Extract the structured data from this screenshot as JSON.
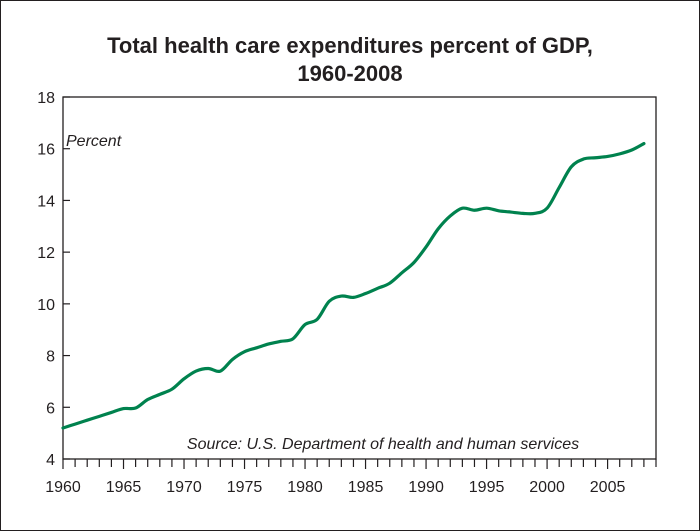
{
  "chart_data": {
    "type": "line",
    "title": "Total health care expenditures percent of GDP,",
    "subtitle": "1960-2008",
    "ylabel": "Percent",
    "xlabel": "",
    "source_note": "Source: U.S. Department of health and human services",
    "xlim": [
      1960,
      2009
    ],
    "ylim": [
      4,
      18
    ],
    "x_ticks": [
      1960,
      1965,
      1970,
      1975,
      1980,
      1985,
      1990,
      1995,
      2000,
      2005
    ],
    "y_ticks": [
      4,
      6,
      8,
      10,
      12,
      14,
      16,
      18
    ],
    "grid": false,
    "series": [
      {
        "color": "#00824e",
        "x": [
          1960,
          1961,
          1962,
          1963,
          1964,
          1965,
          1966,
          1967,
          1968,
          1969,
          1970,
          1971,
          1972,
          1973,
          1974,
          1975,
          1976,
          1977,
          1978,
          1979,
          1980,
          1981,
          1982,
          1983,
          1984,
          1985,
          1986,
          1987,
          1988,
          1989,
          1990,
          1991,
          1992,
          1993,
          1994,
          1995,
          1996,
          1997,
          1998,
          1999,
          2000,
          2001,
          2002,
          2003,
          2004,
          2005,
          2006,
          2007,
          2008
        ],
        "y": [
          5.2,
          5.35,
          5.5,
          5.65,
          5.8,
          5.95,
          5.97,
          6.3,
          6.5,
          6.7,
          7.1,
          7.4,
          7.5,
          7.4,
          7.85,
          8.15,
          8.3,
          8.45,
          8.55,
          8.65,
          9.2,
          9.4,
          10.1,
          10.3,
          10.25,
          10.4,
          10.6,
          10.8,
          11.2,
          11.6,
          12.2,
          12.9,
          13.4,
          13.7,
          13.62,
          13.7,
          13.6,
          13.55,
          13.5,
          13.5,
          13.7,
          14.5,
          15.3,
          15.6,
          15.65,
          15.7,
          15.8,
          15.95,
          16.2
        ]
      }
    ]
  }
}
